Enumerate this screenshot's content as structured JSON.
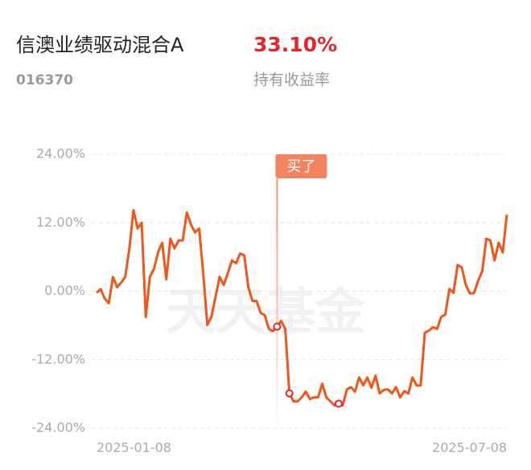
{
  "header": {
    "title": "信澳业绩驱动混合A",
    "code": "016370",
    "return_value": "33.10%",
    "return_label": "持有收益率"
  },
  "chart_data": {
    "type": "line",
    "watermark": "天天基金",
    "color": "#f0561a",
    "grid": true,
    "categories": [
      "2025-01-08",
      null,
      null,
      null,
      null,
      null,
      null,
      null,
      null,
      null,
      null,
      null,
      null,
      null,
      null,
      null,
      null,
      null,
      null,
      null,
      null,
      null,
      null,
      null,
      null,
      null,
      null,
      null,
      null,
      null,
      null,
      null,
      null,
      null,
      null,
      null,
      null,
      null,
      null,
      null,
      null,
      null,
      null,
      null,
      null,
      null,
      null,
      null,
      null,
      null,
      null,
      null,
      null,
      null,
      null,
      null,
      null,
      null,
      null,
      null,
      null,
      null,
      null,
      null,
      null,
      null,
      null,
      null,
      null,
      null,
      null,
      null,
      null,
      null,
      null,
      null,
      null,
      null,
      null,
      null,
      null,
      null,
      null,
      null,
      null,
      null,
      null,
      null,
      null,
      null,
      null,
      null,
      null,
      null,
      null,
      null,
      null,
      null,
      null,
      null,
      "2025-07-08"
    ],
    "values": [
      -0.3,
      0.4,
      -1.3,
      -2.1,
      2.5,
      0.7,
      1.5,
      2.5,
      7.5,
      14.2,
      11,
      12,
      -4.5,
      2.5,
      3.9,
      6.8,
      8.5,
      2.1,
      9.2,
      7.5,
      8.9,
      8.9,
      13.8,
      11.7,
      10.3,
      11,
      3.2,
      -5.9,
      -4.5,
      -1,
      2.5,
      1.1,
      3.2,
      5.4,
      4.9,
      6.6,
      6.3,
      0.7,
      -1.7,
      -1.7,
      -3.8,
      -4.2,
      -6.6,
      -7,
      -6.2,
      -5.2,
      -6.6,
      -17.9,
      -19.3,
      -19.3,
      -18.6,
      -17.6,
      -18.9,
      -18.6,
      -18.6,
      -16.2,
      -18.6,
      -19.3,
      -20,
      -19.7,
      -20,
      -17.2,
      -16.8,
      -17.6,
      -15.1,
      -16.5,
      -15.1,
      -16.9,
      -14.8,
      -17.9,
      -17.3,
      -17.2,
      -17.9,
      -16.8,
      -18.6,
      -17.5,
      -17.9,
      -15.1,
      -16.5,
      -16.5,
      -7.3,
      -6.9,
      -6.3,
      -6.6,
      -4.5,
      -4.1,
      0.4,
      -0.3,
      4.6,
      4.2,
      1.1,
      -0.4,
      -0.3,
      1.8,
      3.5,
      9.2,
      8.9,
      5.4,
      8.5,
      6.8,
      13.4
    ],
    "ylim": [
      -24,
      24
    ],
    "yticks": [
      {
        "value": 24,
        "label": "24.00%"
      },
      {
        "value": 12,
        "label": "12.00%"
      },
      {
        "value": 0,
        "label": "0.00%"
      },
      {
        "value": -12,
        "label": "-12.00%"
      },
      {
        "value": -24,
        "label": "-24.00%"
      }
    ],
    "annotation": {
      "text": "买了",
      "point": 44
    },
    "highlight_points": [
      44,
      47,
      59
    ]
  }
}
